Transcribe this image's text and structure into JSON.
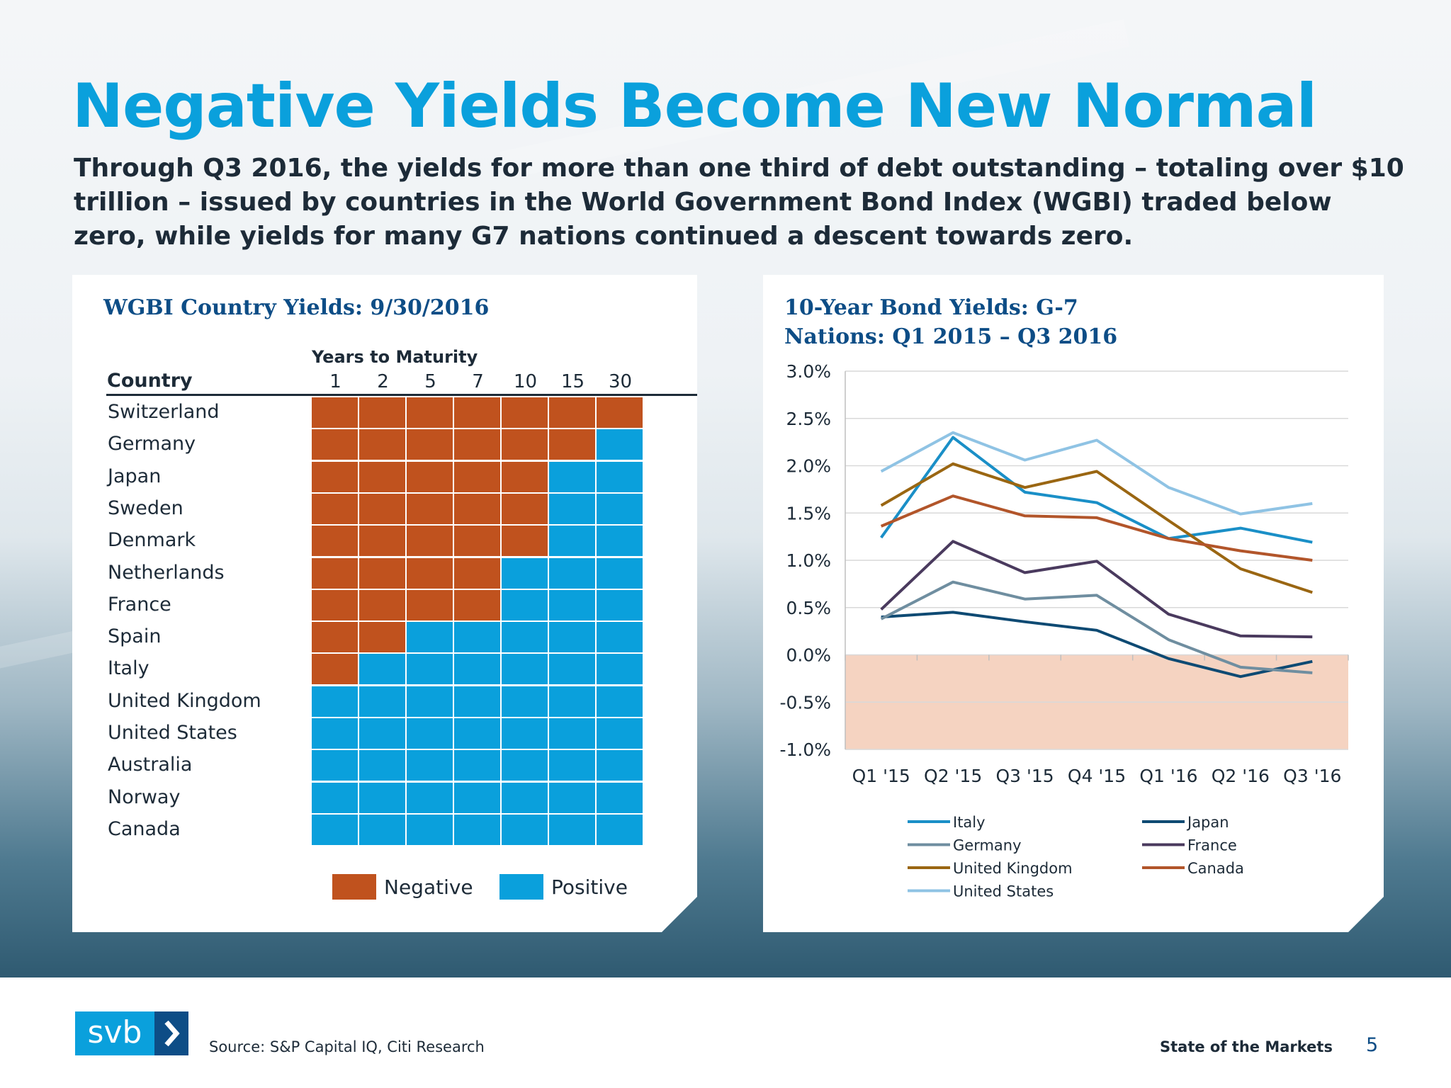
{
  "header": {
    "title": "Negative Yields Become New Normal",
    "subtitle": "Through Q3 2016, the yields for more than one third of debt outstanding – totaling over $10 trillion – issued by countries in the World Government Bond Index (WGBI) traded below zero, while yields for many G7 nations continued a descent towards zero."
  },
  "colors": {
    "negative": "#c0521e",
    "positive": "#0aa0dc",
    "accent": "#0aa0dc",
    "navy": "#0d4d86"
  },
  "chart_data": [
    {
      "type": "heatmap",
      "title": "WGBI Country Yields: 9/30/2016",
      "column_group_label": "Years to Maturity",
      "row_header": "Country",
      "columns": [
        "1",
        "2",
        "5",
        "7",
        "10",
        "15",
        "30"
      ],
      "rows": [
        {
          "country": "Switzerland",
          "negative_count": 7
        },
        {
          "country": "Germany",
          "negative_count": 6
        },
        {
          "country": "Japan",
          "negative_count": 5
        },
        {
          "country": "Sweden",
          "negative_count": 5
        },
        {
          "country": "Denmark",
          "negative_count": 5
        },
        {
          "country": "Netherlands",
          "negative_count": 4
        },
        {
          "country": "France",
          "negative_count": 4
        },
        {
          "country": "Spain",
          "negative_count": 2
        },
        {
          "country": "Italy",
          "negative_count": 1
        },
        {
          "country": "United Kingdom",
          "negative_count": 0
        },
        {
          "country": "United States",
          "negative_count": 0
        },
        {
          "country": "Australia",
          "negative_count": 0
        },
        {
          "country": "Norway",
          "negative_count": 0
        },
        {
          "country": "Canada",
          "negative_count": 0
        }
      ],
      "legend": [
        "Negative",
        "Positive"
      ],
      "legend_placement": "bottom"
    },
    {
      "type": "line",
      "title": "10-Year Bond Yields: G-7 Nations: Q1 2015 – Q3 2016",
      "categories": [
        "Q1 '15",
        "Q2 '15",
        "Q3 '15",
        "Q4 '15",
        "Q1 '16",
        "Q2 '16",
        "Q3 '16"
      ],
      "ylim": [
        -1.0,
        3.0
      ],
      "yticks": [
        3.0,
        2.5,
        2.0,
        1.5,
        1.0,
        0.5,
        0.0,
        -0.5,
        -1.0
      ],
      "ytick_labels": [
        "3.0%",
        "2.5%",
        "2.0%",
        "1.5%",
        "1.0%",
        "0.5%",
        "0.0%",
        "-0.5%",
        "-1.0%"
      ],
      "grid": true,
      "negative_region_color": "#f5d3c1",
      "legend_placement": "bottom",
      "series": [
        {
          "name": "Italy",
          "color": "#1a8fc7",
          "values": [
            1.24,
            2.3,
            1.72,
            1.61,
            1.23,
            1.34,
            1.19
          ]
        },
        {
          "name": "Japan",
          "color": "#0e4a73",
          "values": [
            0.4,
            0.45,
            0.35,
            0.26,
            -0.04,
            -0.23,
            -0.07
          ]
        },
        {
          "name": "Germany",
          "color": "#6f8ea0",
          "values": [
            0.38,
            0.77,
            0.59,
            0.63,
            0.16,
            -0.13,
            -0.19
          ]
        },
        {
          "name": "France",
          "color": "#4a3a5e",
          "values": [
            0.48,
            1.2,
            0.87,
            0.99,
            0.43,
            0.2,
            0.19
          ]
        },
        {
          "name": "United Kingdom",
          "color": "#9a6612",
          "values": [
            1.58,
            2.02,
            1.77,
            1.94,
            1.42,
            0.91,
            0.66
          ]
        },
        {
          "name": "Canada",
          "color": "#b2552a",
          "values": [
            1.36,
            1.68,
            1.47,
            1.45,
            1.23,
            1.1,
            1.0
          ]
        },
        {
          "name": "United States",
          "color": "#8fc3e4",
          "values": [
            1.94,
            2.35,
            2.06,
            2.27,
            1.77,
            1.49,
            1.6
          ]
        }
      ]
    }
  ],
  "footer": {
    "logo_text": "svb",
    "source": "Source: S&P Capital IQ, Citi Research",
    "deck_name": "State of the Markets",
    "page_number": "5"
  }
}
